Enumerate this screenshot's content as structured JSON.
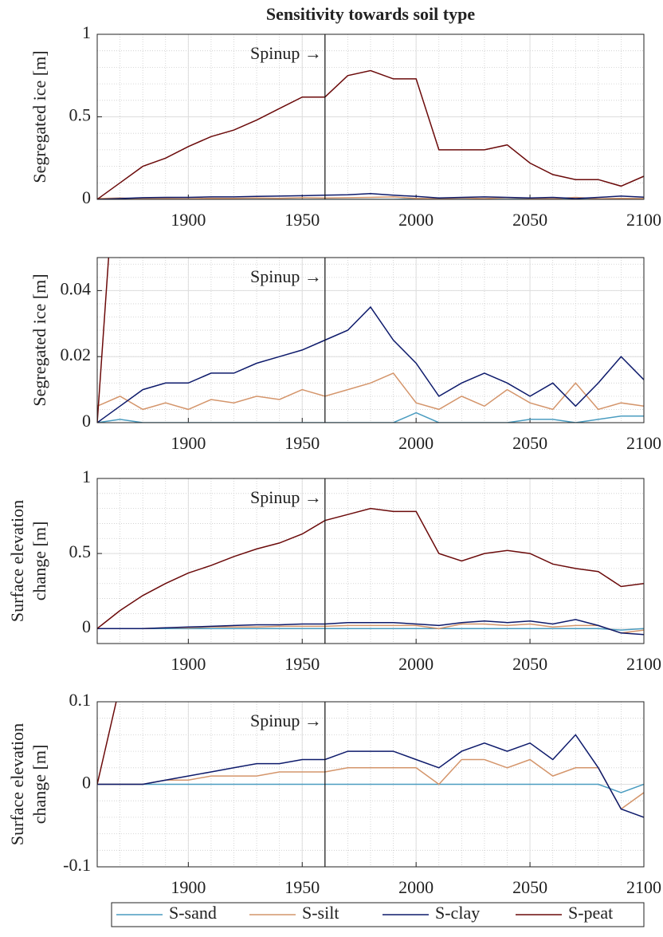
{
  "chart_data": [
    {
      "type": "line",
      "title": "Sensitivity towards soil type",
      "ylabel": [
        "Segregated ice [m]"
      ],
      "x": [
        1860,
        1870,
        1880,
        1890,
        1900,
        1910,
        1920,
        1930,
        1940,
        1950,
        1960,
        1970,
        1980,
        1990,
        2000,
        2010,
        2020,
        2030,
        2040,
        2050,
        2060,
        2070,
        2080,
        2090,
        2100
      ],
      "xlim": [
        1860,
        2100
      ],
      "xticks": [
        1900,
        1950,
        2000,
        2050,
        2100
      ],
      "ylim": [
        0,
        1
      ],
      "yticks": [
        0,
        0.5,
        1
      ],
      "grid": true,
      "minor_grid": true,
      "annotations": [
        {
          "text": "Spinup →",
          "x": 1960
        }
      ],
      "series": [
        {
          "color": "#4a9cc0",
          "values": [
            0,
            0,
            0,
            0,
            0,
            0,
            0,
            0,
            0,
            0,
            0,
            0,
            0,
            0,
            0.003,
            0,
            0,
            0,
            0,
            0.001,
            0.001,
            0,
            0.001,
            0.002,
            0.002
          ]
        },
        {
          "color": "#d4956b",
          "values": [
            0.005,
            0.008,
            0.004,
            0.006,
            0.004,
            0.007,
            0.006,
            0.008,
            0.007,
            0.01,
            0.008,
            0.01,
            0.012,
            0.015,
            0.006,
            0.004,
            0.008,
            0.005,
            0.01,
            0.006,
            0.004,
            0.012,
            0.004,
            0.006,
            0.005
          ]
        },
        {
          "color": "#0d1a6b",
          "values": [
            0,
            0.005,
            0.01,
            0.012,
            0.012,
            0.015,
            0.015,
            0.018,
            0.02,
            0.022,
            0.025,
            0.028,
            0.035,
            0.025,
            0.018,
            0.008,
            0.012,
            0.015,
            0.012,
            0.008,
            0.012,
            0.005,
            0.012,
            0.02,
            0.013
          ]
        },
        {
          "color": "#6b0a0a",
          "values": [
            0,
            0.1,
            0.2,
            0.25,
            0.32,
            0.38,
            0.42,
            0.48,
            0.55,
            0.62,
            0.62,
            0.75,
            0.78,
            0.73,
            0.73,
            0.3,
            0.3,
            0.3,
            0.33,
            0.22,
            0.15,
            0.12,
            0.12,
            0.08,
            0.14
          ]
        }
      ]
    },
    {
      "type": "line",
      "ylabel": [
        "Segregated ice [m]"
      ],
      "x": [
        1860,
        1870,
        1880,
        1890,
        1900,
        1910,
        1920,
        1930,
        1940,
        1950,
        1960,
        1970,
        1980,
        1990,
        2000,
        2010,
        2020,
        2030,
        2040,
        2050,
        2060,
        2070,
        2080,
        2090,
        2100
      ],
      "xlim": [
        1860,
        2100
      ],
      "xticks": [
        1900,
        1950,
        2000,
        2050,
        2100
      ],
      "ylim": [
        0,
        0.05
      ],
      "yticks": [
        0,
        0.02,
        0.04
      ],
      "grid": true,
      "minor_grid": true,
      "annotations": [
        {
          "text": "Spinup →",
          "x": 1960
        }
      ],
      "series": [
        {
          "color": "#4a9cc0",
          "values": [
            0,
            0.001,
            0,
            0,
            0,
            0,
            0,
            0,
            0,
            0,
            0,
            0,
            0,
            0,
            0.003,
            0,
            0,
            0,
            0,
            0.001,
            0.001,
            0,
            0.001,
            0.002,
            0.002
          ]
        },
        {
          "color": "#d4956b",
          "values": [
            0.005,
            0.008,
            0.004,
            0.006,
            0.004,
            0.007,
            0.006,
            0.008,
            0.007,
            0.01,
            0.008,
            0.01,
            0.012,
            0.015,
            0.006,
            0.004,
            0.008,
            0.005,
            0.01,
            0.006,
            0.004,
            0.012,
            0.004,
            0.006,
            0.005
          ]
        },
        {
          "color": "#0d1a6b",
          "values": [
            0,
            0.005,
            0.01,
            0.012,
            0.012,
            0.015,
            0.015,
            0.018,
            0.02,
            0.022,
            0.025,
            0.028,
            0.035,
            0.025,
            0.018,
            0.008,
            0.012,
            0.015,
            0.012,
            0.008,
            0.012,
            0.005,
            0.012,
            0.02,
            0.013
          ]
        },
        {
          "color": "#6b0a0a",
          "values": [
            0,
            0.1,
            0.2,
            0.25,
            0.32,
            0.38,
            0.42,
            0.48,
            0.55,
            0.62,
            0.62,
            0.75,
            0.78,
            0.73,
            0.73,
            0.3,
            0.3,
            0.3,
            0.33,
            0.22,
            0.15,
            0.12,
            0.12,
            0.08,
            0.14
          ]
        }
      ]
    },
    {
      "type": "line",
      "ylabel": [
        "Surface elevation",
        "change [m]"
      ],
      "x": [
        1860,
        1870,
        1880,
        1890,
        1900,
        1910,
        1920,
        1930,
        1940,
        1950,
        1960,
        1970,
        1980,
        1990,
        2000,
        2010,
        2020,
        2030,
        2040,
        2050,
        2060,
        2070,
        2080,
        2090,
        2100
      ],
      "xlim": [
        1860,
        2100
      ],
      "xticks": [
        1900,
        1950,
        2000,
        2050,
        2100
      ],
      "ylim": [
        -0.1,
        1
      ],
      "yticks": [
        0,
        0.5,
        1
      ],
      "grid": true,
      "minor_grid": true,
      "annotations": [
        {
          "text": "Spinup →",
          "x": 1960
        }
      ],
      "series": [
        {
          "color": "#4a9cc0",
          "values": [
            0,
            0,
            0,
            0,
            0,
            0,
            0,
            0,
            0,
            0,
            0,
            0,
            0,
            0,
            0,
            0,
            0,
            0,
            0,
            0,
            0,
            0,
            0,
            -0.01,
            0
          ]
        },
        {
          "color": "#d4956b",
          "values": [
            0,
            0,
            0,
            0.005,
            0.005,
            0.01,
            0.01,
            0.01,
            0.015,
            0.015,
            0.015,
            0.02,
            0.02,
            0.02,
            0.02,
            0,
            0.03,
            0.03,
            0.02,
            0.03,
            0.01,
            0.02,
            0.02,
            -0.03,
            -0.01
          ]
        },
        {
          "color": "#0d1a6b",
          "values": [
            0,
            0,
            0,
            0.005,
            0.01,
            0.015,
            0.02,
            0.025,
            0.025,
            0.03,
            0.03,
            0.04,
            0.04,
            0.04,
            0.03,
            0.02,
            0.04,
            0.05,
            0.04,
            0.05,
            0.03,
            0.06,
            0.02,
            -0.03,
            -0.04
          ]
        },
        {
          "color": "#6b0a0a",
          "values": [
            0,
            0.12,
            0.22,
            0.3,
            0.37,
            0.42,
            0.48,
            0.53,
            0.57,
            0.63,
            0.72,
            0.76,
            0.8,
            0.78,
            0.78,
            0.5,
            0.45,
            0.5,
            0.52,
            0.5,
            0.43,
            0.4,
            0.38,
            0.28,
            0.3
          ]
        }
      ]
    },
    {
      "type": "line",
      "ylabel": [
        "Surface elevation",
        "change [m]"
      ],
      "x": [
        1860,
        1870,
        1880,
        1890,
        1900,
        1910,
        1920,
        1930,
        1940,
        1950,
        1960,
        1970,
        1980,
        1990,
        2000,
        2010,
        2020,
        2030,
        2040,
        2050,
        2060,
        2070,
        2080,
        2090,
        2100
      ],
      "xlim": [
        1860,
        2100
      ],
      "xticks": [
        1900,
        1950,
        2000,
        2050,
        2100
      ],
      "ylim": [
        -0.1,
        0.1
      ],
      "yticks": [
        -0.1,
        0,
        0.1
      ],
      "grid": true,
      "minor_grid": true,
      "annotations": [
        {
          "text": "Spinup →",
          "x": 1960
        }
      ],
      "legend": "bottom",
      "series": [
        {
          "name": "S-sand",
          "color": "#4a9cc0",
          "values": [
            0,
            0,
            0,
            0,
            0,
            0,
            0,
            0,
            0,
            0,
            0,
            0,
            0,
            0,
            0,
            0,
            0,
            0,
            0,
            0,
            0,
            0,
            0,
            -0.01,
            0
          ]
        },
        {
          "name": "S-silt",
          "color": "#d4956b",
          "values": [
            0,
            0,
            0,
            0.005,
            0.005,
            0.01,
            0.01,
            0.01,
            0.015,
            0.015,
            0.015,
            0.02,
            0.02,
            0.02,
            0.02,
            0,
            0.03,
            0.03,
            0.02,
            0.03,
            0.01,
            0.02,
            0.02,
            -0.03,
            -0.01
          ]
        },
        {
          "name": "S-clay",
          "color": "#0d1a6b",
          "values": [
            0,
            0,
            0,
            0.005,
            0.01,
            0.015,
            0.02,
            0.025,
            0.025,
            0.03,
            0.03,
            0.04,
            0.04,
            0.04,
            0.03,
            0.02,
            0.04,
            0.05,
            0.04,
            0.05,
            0.03,
            0.06,
            0.02,
            -0.03,
            -0.04
          ]
        },
        {
          "name": "S-peat",
          "color": "#6b0a0a",
          "values": [
            0,
            0.12,
            0.22,
            0.3,
            0.37,
            0.42,
            0.48,
            0.53,
            0.57,
            0.63,
            0.72,
            0.76,
            0.8,
            0.78,
            0.78,
            0.5,
            0.45,
            0.5,
            0.52,
            0.5,
            0.43,
            0.4,
            0.38,
            0.28,
            0.3
          ]
        }
      ]
    }
  ]
}
